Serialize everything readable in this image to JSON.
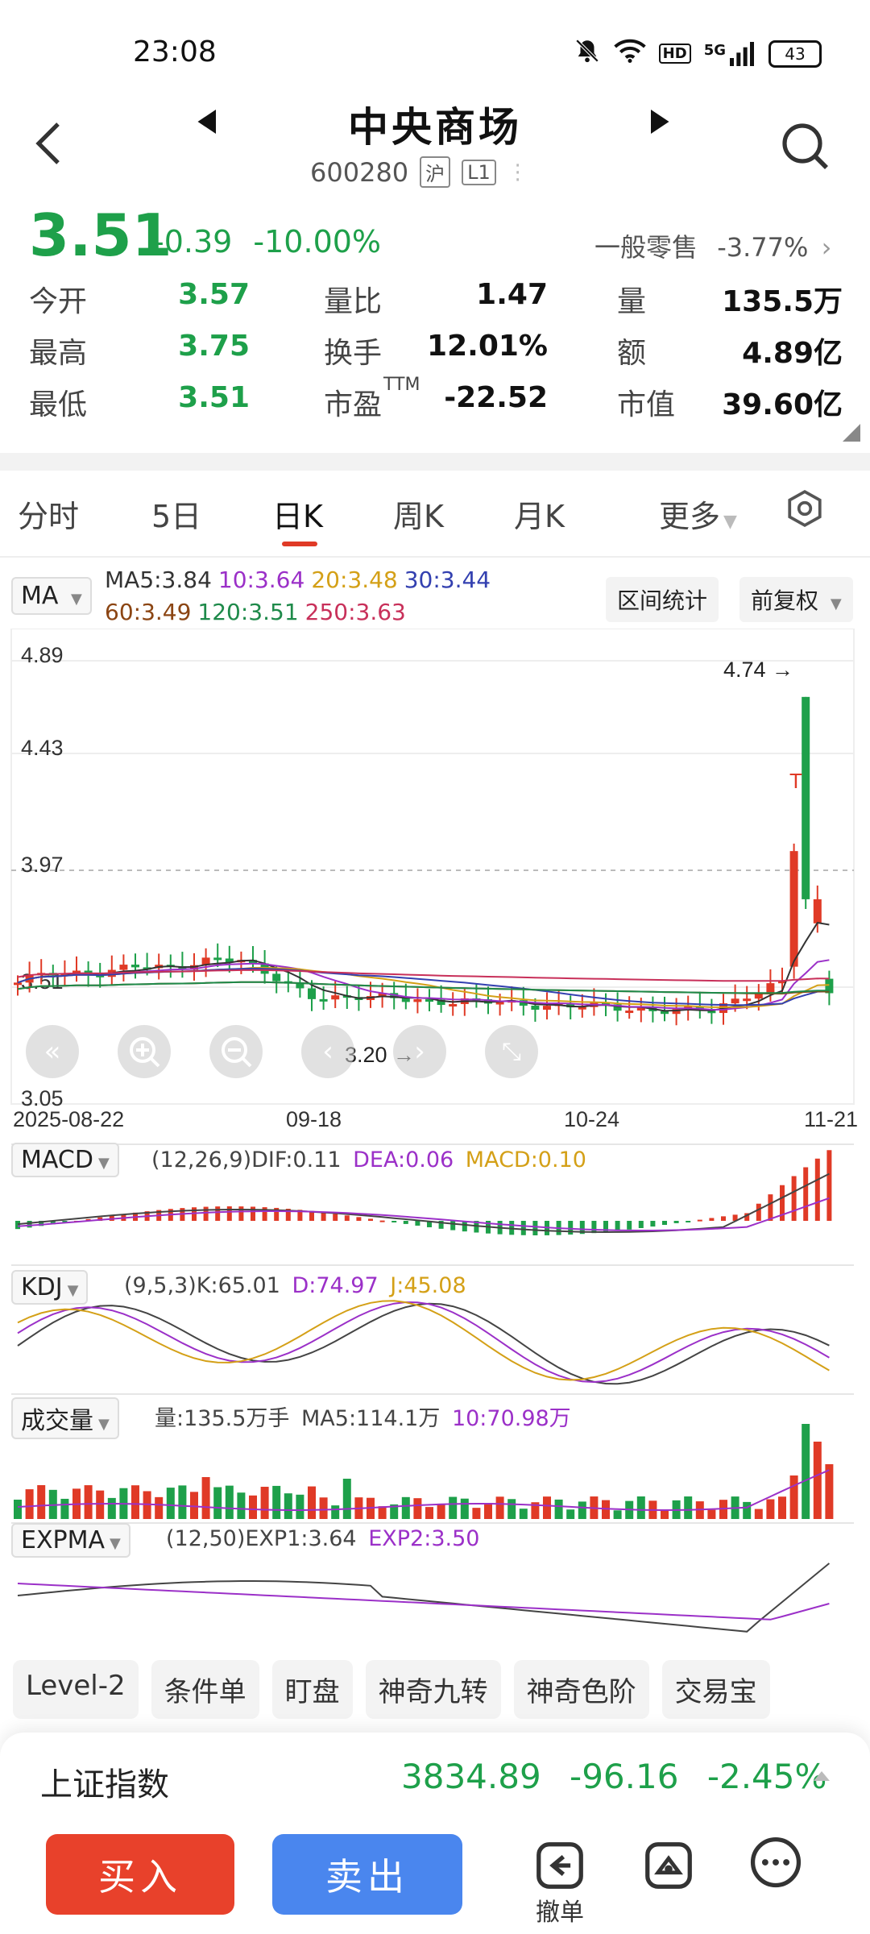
{
  "status_bar": {
    "time": "23:08",
    "network": "5G",
    "hd": "HD",
    "battery": "43"
  },
  "header": {
    "title": "中央商场",
    "code": "600280",
    "market_tag": "沪",
    "level_tag": "L1"
  },
  "quote": {
    "price": "3.51",
    "change": "-0.39",
    "change_pct": "-10.00%",
    "sector_name": "一般零售",
    "sector_pct": "-3.77%",
    "rows": [
      [
        {
          "label": "今开",
          "value": "3.57"
        },
        {
          "label": "量比",
          "value": "1.47"
        },
        {
          "label": "量",
          "value": "135.5万"
        }
      ],
      [
        {
          "label": "最高",
          "value": "3.75"
        },
        {
          "label": "换手",
          "value": "12.01%"
        },
        {
          "label": "额",
          "value": "4.89亿"
        }
      ],
      [
        {
          "label": "最低",
          "value": "3.51"
        },
        {
          "label": "市盈",
          "sup": "TTM",
          "value": "-22.52"
        },
        {
          "label": "市值",
          "value": "39.60亿"
        }
      ]
    ]
  },
  "tabs": [
    "分时",
    "5日",
    "日K",
    "周K",
    "月K",
    "更多"
  ],
  "ma": {
    "dropdown": "MA",
    "row1": [
      {
        "text": "MA5:3.84",
        "color": "#333333"
      },
      {
        "text": "10:3.64",
        "color": "#9b30c8"
      },
      {
        "text": "20:3.48",
        "color": "#d4a017"
      },
      {
        "text": "30:3.44",
        "color": "#3340b0"
      }
    ],
    "row2": [
      {
        "text": "60:3.49",
        "color": "#8b4513"
      },
      {
        "text": "120:3.51",
        "color": "#1e8a4a"
      },
      {
        "text": "250:3.63",
        "color": "#c8305a"
      }
    ],
    "btn_range": "区间统计",
    "btn_adjust": "前复权"
  },
  "chart_data": {
    "type": "candlestick",
    "y_ticks": [
      "4.89",
      "4.43",
      "3.97",
      "3.51",
      "3.05"
    ],
    "ylim": [
      3.05,
      4.89
    ],
    "x_ticks": [
      "2025-08-22",
      "09-18",
      "10-24",
      "11-21"
    ],
    "annotations": {
      "high_label": "4.74",
      "low_label": "3.20",
      "marker": "T"
    }
  },
  "macd": {
    "name": "MACD",
    "params": "(12,26,9)",
    "dif": "DIF:0.11",
    "dea": "DEA:0.06",
    "macd": "MACD:0.10"
  },
  "kdj": {
    "name": "KDJ",
    "params": "(9,5,3)",
    "k": "K:65.01",
    "d": "D:74.97",
    "j": "J:45.08"
  },
  "volume": {
    "name": "成交量",
    "vol": "量:135.5万手",
    "ma5": "MA5:114.1万",
    "ma10": "10:70.98万"
  },
  "expma": {
    "name": "EXPMA",
    "params": "(12,50)",
    "exp1": "EXP1:3.64",
    "exp2": "EXP2:3.50"
  },
  "tools": [
    "Level-2",
    "条件单",
    "盯盘",
    "神奇九转",
    "神奇色阶",
    "交易宝"
  ],
  "index": {
    "name": "上证指数",
    "value": "3834.89",
    "change": "-96.16",
    "pct": "-2.45%"
  },
  "actions": {
    "buy": "买入",
    "sell": "卖出",
    "cancel": "撤单"
  }
}
